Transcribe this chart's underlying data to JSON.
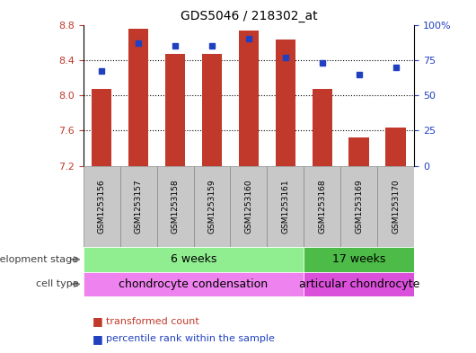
{
  "title": "GDS5046 / 218302_at",
  "samples": [
    "GSM1253156",
    "GSM1253157",
    "GSM1253158",
    "GSM1253159",
    "GSM1253160",
    "GSM1253161",
    "GSM1253168",
    "GSM1253169",
    "GSM1253170"
  ],
  "bar_values": [
    8.07,
    8.75,
    8.47,
    8.47,
    8.73,
    8.63,
    8.07,
    7.52,
    7.63
  ],
  "bar_bottom": 7.2,
  "percentile_values": [
    67,
    87,
    85,
    85,
    90,
    77,
    73,
    65,
    70
  ],
  "ylim_left": [
    7.2,
    8.8
  ],
  "ylim_right": [
    0,
    100
  ],
  "yticks_left": [
    7.2,
    7.6,
    8.0,
    8.4,
    8.8
  ],
  "yticks_right": [
    0,
    25,
    50,
    75,
    100
  ],
  "bar_color": "#C0392B",
  "dot_color": "#2040C0",
  "bar_width": 0.55,
  "groups": [
    {
      "label": "6 weeks",
      "n_samples": 6,
      "color": "#90EE90"
    },
    {
      "label": "17 weeks",
      "n_samples": 3,
      "color": "#4CBB47"
    }
  ],
  "cell_types": [
    {
      "label": "chondrocyte condensation",
      "n_samples": 6,
      "color": "#EE82EE"
    },
    {
      "label": "articular chondrocyte",
      "n_samples": 3,
      "color": "#DA50DA"
    }
  ],
  "legend_items": [
    {
      "label": "transformed count",
      "color": "#C0392B"
    },
    {
      "label": "percentile rank within the sample",
      "color": "#2040C0"
    }
  ],
  "row_labels": [
    "development stage",
    "cell type"
  ],
  "axis_label_color_left": "#C0392B",
  "axis_label_color_right": "#2040C0",
  "sample_box_color": "#C8C8C8",
  "sample_box_edge": "#888888"
}
